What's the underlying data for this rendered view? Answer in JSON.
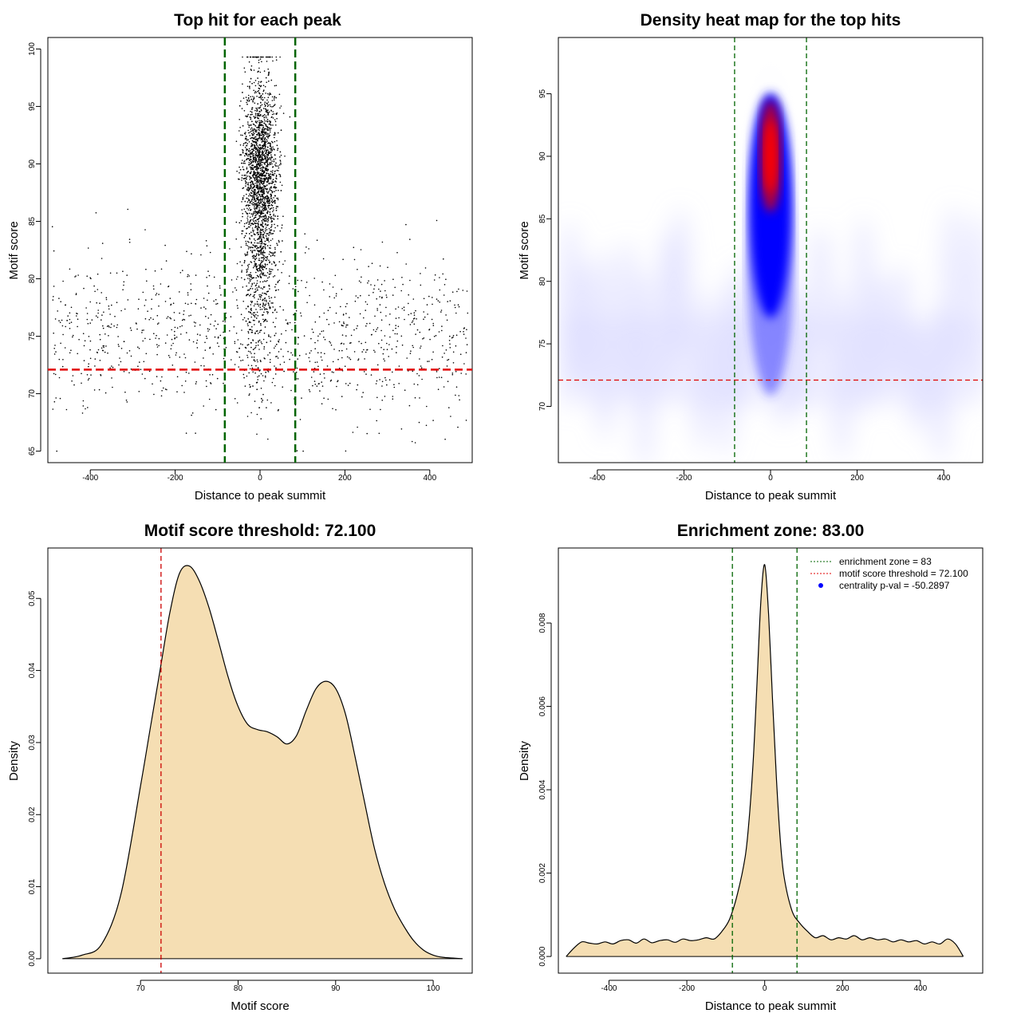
{
  "chart_data": [
    {
      "type": "scatter",
      "title": "Top hit for each peak",
      "xlabel": "Distance to peak summit",
      "ylabel": "Motif score",
      "xlim": [
        -500,
        500
      ],
      "ylim": [
        64,
        101
      ],
      "xticks": [
        -400,
        -200,
        0,
        200,
        400
      ],
      "yticks": [
        65,
        70,
        75,
        80,
        85,
        90,
        95,
        100
      ],
      "point_color": "#000000",
      "background_points": {
        "count": 1050,
        "x_range": [
          -490,
          490
        ],
        "y_mean": 75,
        "y_sd": 3.5,
        "y_min": 65,
        "y_max": 95
      },
      "central_points": {
        "count": 2900,
        "x_mean": 0,
        "x_sd": 20,
        "y_min": 67,
        "y_max": 99.3
      },
      "vlines": {
        "values": [
          -83,
          83
        ],
        "color": "#006400",
        "style": "dashed"
      },
      "hline": {
        "value": 72.1,
        "color": "#e00000",
        "style": "dashed"
      }
    },
    {
      "type": "heatmap",
      "title": "Density heat map for the top hits",
      "xlabel": "Distance to peak summit",
      "ylabel": "Motif score",
      "xlim": [
        -490,
        490
      ],
      "ylim": [
        65.5,
        99.5
      ],
      "xticks": [
        -400,
        -200,
        0,
        200,
        400
      ],
      "yticks": [
        70,
        75,
        80,
        85,
        90,
        95
      ],
      "colors": [
        "#ffffff",
        "#0000ff",
        "#ff0000"
      ],
      "hotspot": {
        "x": 0,
        "y": 90
      },
      "vlines": {
        "values": [
          -83,
          83
        ],
        "color": "#006400",
        "style": "dashed"
      },
      "hline": {
        "value": 72.1,
        "color": "#e00000",
        "style": "dashed"
      }
    },
    {
      "type": "area",
      "title": "Motif score threshold: 72.100",
      "xlabel": "Motif score",
      "ylabel": "Density",
      "xlim": [
        60.5,
        104
      ],
      "ylim": [
        -0.002,
        0.057
      ],
      "xticks": [
        70,
        80,
        90,
        100
      ],
      "yticks": [
        0.0,
        0.01,
        0.02,
        0.03,
        0.04,
        0.05
      ],
      "ytick_labels": [
        "0.00",
        "0.01",
        "0.02",
        "0.03",
        "0.04",
        "0.05"
      ],
      "fill_color": "#f5deb3",
      "x": [
        62,
        64,
        66,
        68,
        70,
        71,
        72,
        73,
        74,
        75,
        76,
        77,
        78,
        79,
        80,
        81,
        82,
        83,
        84,
        85,
        86,
        87,
        88,
        89,
        90,
        91,
        92,
        93,
        94,
        95,
        96,
        97,
        98,
        99,
        100,
        101,
        103
      ],
      "y": [
        0.0,
        0.0005,
        0.002,
        0.009,
        0.024,
        0.032,
        0.04,
        0.048,
        0.0535,
        0.0545,
        0.0525,
        0.0488,
        0.044,
        0.039,
        0.035,
        0.0325,
        0.0318,
        0.0315,
        0.0308,
        0.0298,
        0.031,
        0.0345,
        0.0375,
        0.0385,
        0.0375,
        0.034,
        0.028,
        0.0215,
        0.0152,
        0.0105,
        0.007,
        0.0045,
        0.0025,
        0.0012,
        0.0005,
        0.0002,
        0.0
      ],
      "vline": {
        "value": 72.1,
        "color": "#cc0000",
        "style": "dashed"
      }
    },
    {
      "type": "area",
      "title": "Enrichment zone: 83.00",
      "xlabel": "Distance to peak summit",
      "ylabel": "Density",
      "xlim": [
        -530,
        560
      ],
      "ylim": [
        -0.0004,
        0.0098
      ],
      "xticks": [
        -400,
        -200,
        0,
        200,
        400
      ],
      "yticks": [
        0.0,
        0.002,
        0.004,
        0.006,
        0.008
      ],
      "ytick_labels": [
        "0.000",
        "0.002",
        "0.004",
        "0.006",
        "0.008"
      ],
      "fill_color": "#f5deb3",
      "x": [
        -510,
        -490,
        -470,
        -450,
        -430,
        -410,
        -390,
        -370,
        -350,
        -330,
        -310,
        -290,
        -270,
        -250,
        -230,
        -210,
        -190,
        -170,
        -150,
        -130,
        -110,
        -90,
        -70,
        -50,
        -40,
        -30,
        -20,
        -10,
        0,
        10,
        20,
        30,
        40,
        50,
        70,
        90,
        110,
        130,
        150,
        170,
        190,
        210,
        230,
        250,
        270,
        290,
        310,
        330,
        350,
        370,
        390,
        410,
        430,
        450,
        470,
        490,
        510
      ],
      "y": [
        0.0,
        0.0002,
        0.00035,
        0.00032,
        0.0003,
        0.00035,
        0.0003,
        0.00038,
        0.0004,
        0.00032,
        0.00042,
        0.00033,
        0.00038,
        0.0004,
        0.00034,
        0.00042,
        0.00038,
        0.0004,
        0.00045,
        0.00042,
        0.0006,
        0.0009,
        0.0015,
        0.0024,
        0.0033,
        0.0046,
        0.0065,
        0.0085,
        0.0094,
        0.0082,
        0.0062,
        0.0043,
        0.0028,
        0.0019,
        0.0011,
        0.0008,
        0.0006,
        0.00045,
        0.0005,
        0.0004,
        0.00045,
        0.00042,
        0.0005,
        0.0004,
        0.00045,
        0.0004,
        0.00042,
        0.00035,
        0.0004,
        0.00035,
        0.00038,
        0.0003,
        0.00035,
        0.0003,
        0.00042,
        0.0003,
        0.0
      ],
      "vlines": {
        "values": [
          -83,
          83
        ],
        "color": "#006400",
        "style": "dashed"
      },
      "legend": {
        "position": "top-right",
        "entries": [
          {
            "label": "enrichment zone = 83",
            "color": "#006400",
            "style": "dotted"
          },
          {
            "label": "motif score threshold = 72.100",
            "color": "#e00000",
            "style": "dotted"
          },
          {
            "label": "centrality p-val = -50.2897",
            "color": "#0000ff",
            "style": "point"
          }
        ]
      }
    }
  ]
}
